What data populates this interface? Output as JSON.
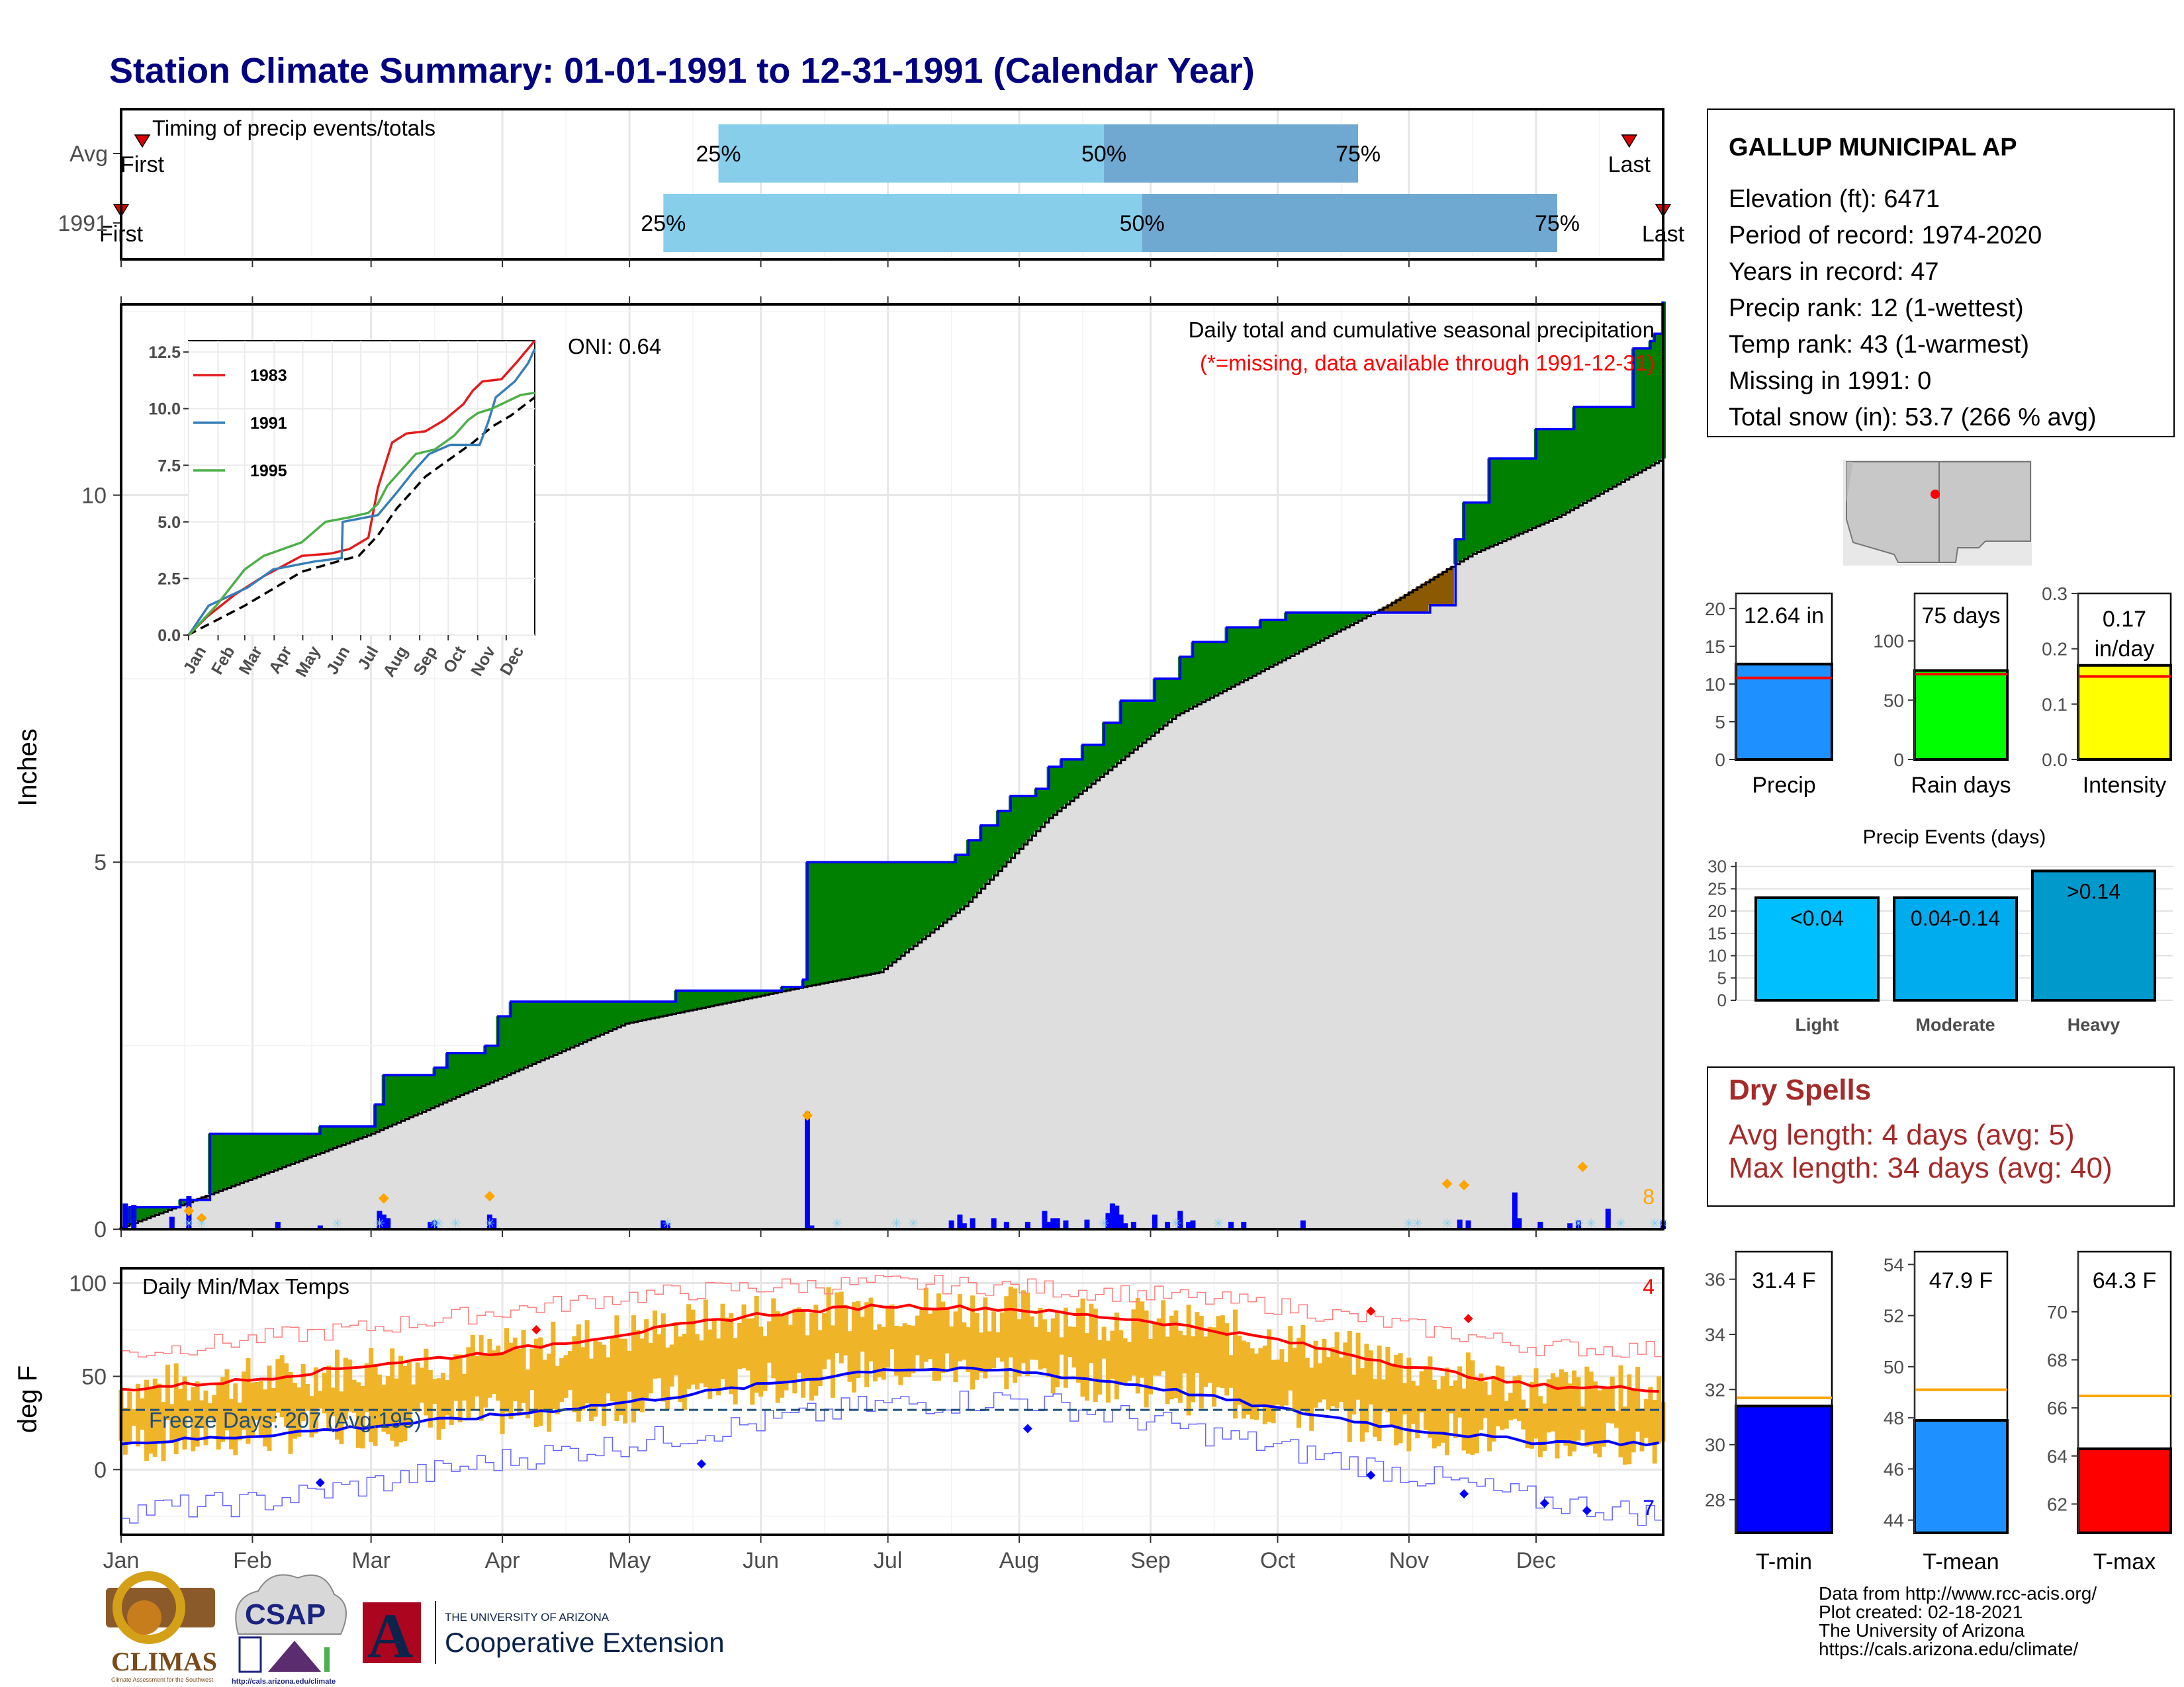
{
  "page": {
    "title": "Station Climate Summary: 01-01-1991 to 12-31-1991 (Calendar Year)",
    "credits": [
      "Data from http://www.rcc-acis.org/",
      "Plot created: 02-18-2021",
      "The University of Arizona",
      "https://cals.arizona.edu/climate/"
    ],
    "logos": {
      "climas": "CLIMAS",
      "climas_sub": "Climate Assessment for the Southwest",
      "csap": "CSAP",
      "csap_url": "http://cals.arizona.edu/climate",
      "ua_small": "THE UNIVERSITY OF ARIZONA",
      "ua_big": "Cooperative Extension"
    }
  },
  "station": {
    "name": "GALLUP MUNICIPAL AP",
    "lines": [
      "Elevation (ft): 6471",
      "Period of record: 1974-2020",
      "Years in record: 47",
      "Precip rank: 12 (1-wettest)",
      "Temp rank: 43 (1-warmest)",
      "Missing in 1991: 0",
      "Total snow (in): 53.7 (266 % avg)"
    ]
  },
  "dry_spells": {
    "title": "Dry Spells",
    "lines": [
      "Avg length: 4 days (avg: 5)",
      "Max length: 34 days (avg: 40)"
    ]
  },
  "chart_data": [
    {
      "id": "timing",
      "type": "bar",
      "title": "Timing of precip events/totals",
      "rows": [
        {
          "label": "Avg",
          "first_doy": 6,
          "q25_doy": 142,
          "q50_doy": 233,
          "q75_doy": 293,
          "last_doy": 357,
          "first_label": "First",
          "last_label": "Last"
        },
        {
          "label": "1991",
          "first_doy": 1,
          "q25_doy": 129,
          "q50_doy": 242,
          "q75_doy": 340,
          "last_doy": 365,
          "first_label": "First",
          "last_label": "Last"
        }
      ],
      "q_labels": [
        "25%",
        "50%",
        "75%"
      ]
    },
    {
      "id": "precip",
      "type": "area",
      "title": "Daily total and cumulative seasonal precipitation",
      "subtitle": "(*=missing, data available through 1991-12-31)",
      "ylabel": "Inches",
      "ylim": [
        0,
        12.6
      ],
      "yticks": [
        0,
        5,
        10
      ],
      "oni": "ONI: 0.64",
      "corner_count": "8",
      "months": [
        "Jan",
        "Feb",
        "Mar",
        "Apr",
        "May",
        "Jun",
        "Jul",
        "Aug",
        "Sep",
        "Oct",
        "Nov",
        "Dec"
      ],
      "cum_1991": [
        [
          1,
          0
        ],
        [
          2,
          0.1
        ],
        [
          3,
          0.3
        ],
        [
          15,
          0.4
        ],
        [
          22,
          1.3
        ],
        [
          48,
          1.4
        ],
        [
          61,
          1.7
        ],
        [
          63,
          2.1
        ],
        [
          75,
          2.2
        ],
        [
          78,
          2.4
        ],
        [
          87,
          2.5
        ],
        [
          90,
          2.9
        ],
        [
          93,
          3.1
        ],
        [
          132,
          3.25
        ],
        [
          157,
          3.3
        ],
        [
          162,
          3.4
        ],
        [
          163,
          5.0
        ],
        [
          198,
          5.1
        ],
        [
          201,
          5.3
        ],
        [
          204,
          5.5
        ],
        [
          208,
          5.7
        ],
        [
          211,
          5.9
        ],
        [
          217,
          6.0
        ],
        [
          220,
          6.3
        ],
        [
          223,
          6.4
        ],
        [
          228,
          6.6
        ],
        [
          233,
          6.9
        ],
        [
          237,
          7.2
        ],
        [
          245,
          7.5
        ],
        [
          251,
          7.8
        ],
        [
          254,
          8.0
        ],
        [
          262,
          8.2
        ],
        [
          270,
          8.3
        ],
        [
          276,
          8.4
        ],
        [
          293,
          8.4
        ],
        [
          307,
          8.4
        ],
        [
          310,
          8.5
        ],
        [
          316,
          9.4
        ],
        [
          318,
          9.9
        ],
        [
          324,
          10.5
        ],
        [
          335,
          10.9
        ],
        [
          344,
          11.2
        ],
        [
          358,
          12.0
        ],
        [
          362,
          12.1
        ],
        [
          363,
          12.2
        ],
        [
          365,
          12.64
        ]
      ],
      "cum_avg": [
        [
          0,
          0
        ],
        [
          60,
          1.3
        ],
        [
          120,
          2.8
        ],
        [
          162,
          3.3
        ],
        [
          180,
          3.5
        ],
        [
          200,
          4.4
        ],
        [
          220,
          5.6
        ],
        [
          250,
          7.0
        ],
        [
          270,
          7.6
        ],
        [
          300,
          8.5
        ],
        [
          320,
          9.2
        ],
        [
          340,
          9.7
        ],
        [
          365,
          10.5
        ]
      ],
      "daily": [
        [
          2,
          0.35
        ],
        [
          4,
          0.33
        ],
        [
          13,
          0.17
        ],
        [
          17,
          0.45
        ],
        [
          38,
          0.1
        ],
        [
          48,
          0.05
        ],
        [
          62,
          0.25
        ],
        [
          63,
          0.2
        ],
        [
          64,
          0.15
        ],
        [
          74,
          0.1
        ],
        [
          75,
          0.12
        ],
        [
          88,
          0.2
        ],
        [
          89,
          0.15
        ],
        [
          129,
          0.12
        ],
        [
          130,
          0.08
        ],
        [
          163,
          1.6
        ],
        [
          164,
          0.05
        ],
        [
          197,
          0.12
        ],
        [
          199,
          0.2
        ],
        [
          200,
          0.08
        ],
        [
          202,
          0.15
        ],
        [
          207,
          0.15
        ],
        [
          210,
          0.1
        ],
        [
          215,
          0.1
        ],
        [
          219,
          0.25
        ],
        [
          220,
          0.1
        ],
        [
          221,
          0.15
        ],
        [
          222,
          0.15
        ],
        [
          224,
          0.12
        ],
        [
          229,
          0.13
        ],
        [
          234,
          0.22
        ],
        [
          235,
          0.35
        ],
        [
          236,
          0.32
        ],
        [
          237,
          0.2
        ],
        [
          238,
          0.08
        ],
        [
          240,
          0.1
        ],
        [
          245,
          0.2
        ],
        [
          248,
          0.1
        ],
        [
          251,
          0.25
        ],
        [
          253,
          0.1
        ],
        [
          254,
          0.12
        ],
        [
          263,
          0.1
        ],
        [
          266,
          0.1
        ],
        [
          280,
          0.12
        ],
        [
          317,
          0.13
        ],
        [
          319,
          0.12
        ],
        [
          330,
          0.5
        ],
        [
          331,
          0.15
        ],
        [
          336,
          0.1
        ],
        [
          343,
          0.08
        ],
        [
          345,
          0.12
        ],
        [
          352,
          0.28
        ],
        [
          365,
          0.12
        ]
      ],
      "records": [
        [
          17,
          0.25
        ],
        [
          20,
          0.15
        ],
        [
          63,
          0.42
        ],
        [
          88,
          0.45
        ],
        [
          163,
          1.55
        ],
        [
          314,
          0.62
        ],
        [
          318,
          0.6
        ],
        [
          346,
          0.85
        ]
      ],
      "snow_doy": [
        17,
        20,
        52,
        62,
        75,
        76,
        80,
        88,
        130,
        170,
        184,
        188,
        233,
        250,
        260,
        305,
        307,
        314,
        345,
        348,
        355,
        363,
        365
      ]
    },
    {
      "id": "precip_inset",
      "type": "line",
      "xlabels": [
        "Jan",
        "Feb",
        "Mar",
        "Apr",
        "May",
        "Jun",
        "Jul",
        "Aug",
        "Sep",
        "Oct",
        "Nov",
        "Dec"
      ],
      "yticks": [
        0.0,
        2.5,
        5.0,
        7.5,
        10.0,
        12.5
      ],
      "ylim": [
        0,
        13
      ],
      "series": [
        {
          "name": "1983",
          "color": "#e41a1c",
          "values": [
            [
              1,
              0
            ],
            [
              20,
              0.8
            ],
            [
              50,
              1.8
            ],
            [
              80,
              2.6
            ],
            [
              120,
              3.5
            ],
            [
              150,
              3.6
            ],
            [
              170,
              3.8
            ],
            [
              190,
              4.3
            ],
            [
              200,
              6.5
            ],
            [
              215,
              8.5
            ],
            [
              230,
              8.9
            ],
            [
              250,
              9.0
            ],
            [
              270,
              9.5
            ],
            [
              290,
              10.2
            ],
            [
              300,
              10.8
            ],
            [
              310,
              11.2
            ],
            [
              330,
              11.3
            ],
            [
              345,
              12.0
            ],
            [
              365,
              13.0
            ]
          ]
        },
        {
          "name": "1991",
          "color": "#377eb8",
          "values": [
            [
              1,
              0
            ],
            [
              22,
              1.3
            ],
            [
              63,
              2.1
            ],
            [
              90,
              2.9
            ],
            [
              133,
              3.25
            ],
            [
              162,
              3.4
            ],
            [
              163,
              5.0
            ],
            [
              200,
              5.3
            ],
            [
              220,
              6.3
            ],
            [
              237,
              7.2
            ],
            [
              254,
              8.0
            ],
            [
              276,
              8.4
            ],
            [
              307,
              8.4
            ],
            [
              316,
              9.4
            ],
            [
              324,
              10.5
            ],
            [
              344,
              11.2
            ],
            [
              358,
              12.0
            ],
            [
              365,
              12.64
            ]
          ]
        },
        {
          "name": "1995",
          "color": "#4daf4a",
          "values": [
            [
              1,
              0
            ],
            [
              30,
              1.3
            ],
            [
              60,
              2.9
            ],
            [
              80,
              3.5
            ],
            [
              120,
              4.1
            ],
            [
              145,
              5.0
            ],
            [
              170,
              5.2
            ],
            [
              190,
              5.4
            ],
            [
              200,
              5.8
            ],
            [
              210,
              6.6
            ],
            [
              240,
              8.0
            ],
            [
              260,
              8.2
            ],
            [
              280,
              8.8
            ],
            [
              295,
              9.5
            ],
            [
              305,
              9.8
            ],
            [
              320,
              10.0
            ],
            [
              350,
              10.6
            ],
            [
              365,
              10.7
            ]
          ]
        }
      ],
      "avg": [
        [
          0,
          0
        ],
        [
          60,
          1.3
        ],
        [
          120,
          2.8
        ],
        [
          162,
          3.3
        ],
        [
          180,
          3.5
        ],
        [
          200,
          4.4
        ],
        [
          220,
          5.6
        ],
        [
          250,
          7.0
        ],
        [
          270,
          7.6
        ],
        [
          300,
          8.5
        ],
        [
          320,
          9.2
        ],
        [
          340,
          9.7
        ],
        [
          365,
          10.5
        ]
      ]
    },
    {
      "id": "temps",
      "type": "bar",
      "title": "Daily Min/Max Temps",
      "ylabel": "deg F",
      "ylim": [
        -35,
        108
      ],
      "yticks": [
        0,
        50,
        100
      ],
      "freeze_label": "Freeze Days: 207 (Avg:195)",
      "freeze_line": 32,
      "corner_hi": "4",
      "corner_lo": "7",
      "avg_tmax": [
        [
          1,
          43
        ],
        [
          31,
          48
        ],
        [
          59,
          56
        ],
        [
          90,
          63
        ],
        [
          120,
          73
        ],
        [
          151,
          83
        ],
        [
          181,
          88
        ],
        [
          212,
          86
        ],
        [
          243,
          80
        ],
        [
          273,
          70
        ],
        [
          304,
          56
        ],
        [
          334,
          45
        ],
        [
          365,
          43
        ]
      ],
      "avg_tmin": [
        [
          1,
          14
        ],
        [
          31,
          18
        ],
        [
          59,
          23
        ],
        [
          90,
          29
        ],
        [
          120,
          36
        ],
        [
          151,
          45
        ],
        [
          181,
          54
        ],
        [
          212,
          53
        ],
        [
          243,
          45
        ],
        [
          273,
          33
        ],
        [
          304,
          22
        ],
        [
          334,
          15
        ],
        [
          365,
          14
        ]
      ],
      "rec_tmax": [
        [
          1,
          62
        ],
        [
          31,
          70
        ],
        [
          59,
          76
        ],
        [
          90,
          85
        ],
        [
          120,
          93
        ],
        [
          151,
          98
        ],
        [
          181,
          100
        ],
        [
          212,
          98
        ],
        [
          243,
          94
        ],
        [
          273,
          88
        ],
        [
          304,
          77
        ],
        [
          334,
          66
        ],
        [
          365,
          64
        ]
      ],
      "rec_tmin": [
        [
          1,
          -22
        ],
        [
          31,
          -18
        ],
        [
          59,
          -8
        ],
        [
          90,
          5
        ],
        [
          120,
          14
        ],
        [
          151,
          25
        ],
        [
          181,
          35
        ],
        [
          212,
          38
        ],
        [
          243,
          26
        ],
        [
          273,
          12
        ],
        [
          304,
          -2
        ],
        [
          334,
          -16
        ],
        [
          365,
          -25
        ]
      ],
      "record_highs": [
        [
          99,
          75
        ],
        [
          296,
          85
        ],
        [
          319,
          81
        ]
      ],
      "record_lows": [
        [
          48,
          -7
        ],
        [
          138,
          3
        ],
        [
          215,
          22
        ],
        [
          296,
          -3
        ],
        [
          318,
          -13
        ],
        [
          337,
          -18
        ],
        [
          347,
          -22
        ]
      ]
    },
    {
      "id": "precip_bars",
      "type": "bar",
      "categories": [
        "Precip",
        "Rain days",
        "Intensity"
      ],
      "values": [
        12.64,
        75,
        0.17
      ],
      "avg": [
        10.8,
        72,
        0.15
      ],
      "labels": [
        "12.64 in",
        "75 days",
        "0.17 in/day"
      ],
      "ylims": [
        [
          0,
          22
        ],
        [
          0,
          140
        ],
        [
          0,
          0.3
        ]
      ],
      "yticks": [
        [
          0,
          5,
          10,
          15,
          20
        ],
        [
          0,
          50,
          100
        ],
        [
          0.0,
          0.1,
          0.2,
          0.3
        ]
      ],
      "colors": [
        "#1e90ff",
        "#00ff00",
        "#ffff00"
      ]
    },
    {
      "id": "events",
      "type": "bar",
      "title": "Precip Events (days)",
      "categories": [
        "Light",
        "Moderate",
        "Heavy"
      ],
      "values": [
        23,
        23,
        29
      ],
      "labels": [
        "<0.04",
        "0.04-0.14",
        ">0.14"
      ],
      "ylim": [
        0,
        30
      ],
      "yticks": [
        0,
        5,
        10,
        15,
        20,
        25,
        30
      ]
    },
    {
      "id": "temp_bars",
      "type": "bar",
      "categories": [
        "T-min",
        "T-mean",
        "T-max"
      ],
      "values": [
        31.4,
        47.9,
        64.3
      ],
      "avg": [
        31.7,
        49.1,
        66.5
      ],
      "labels": [
        "31.4 F",
        "47.9 F",
        "64.3 F"
      ],
      "ylims": [
        [
          26.8,
          37.0
        ],
        [
          43.5,
          54.5
        ],
        [
          60.8,
          72.5
        ]
      ],
      "yticks": [
        [
          28,
          30,
          32,
          34,
          36
        ],
        [
          44,
          46,
          48,
          50,
          52,
          54
        ],
        [
          62,
          64,
          66,
          68,
          70
        ]
      ],
      "colors": [
        "#0000ff",
        "#1e90ff",
        "#ff0000"
      ]
    }
  ]
}
